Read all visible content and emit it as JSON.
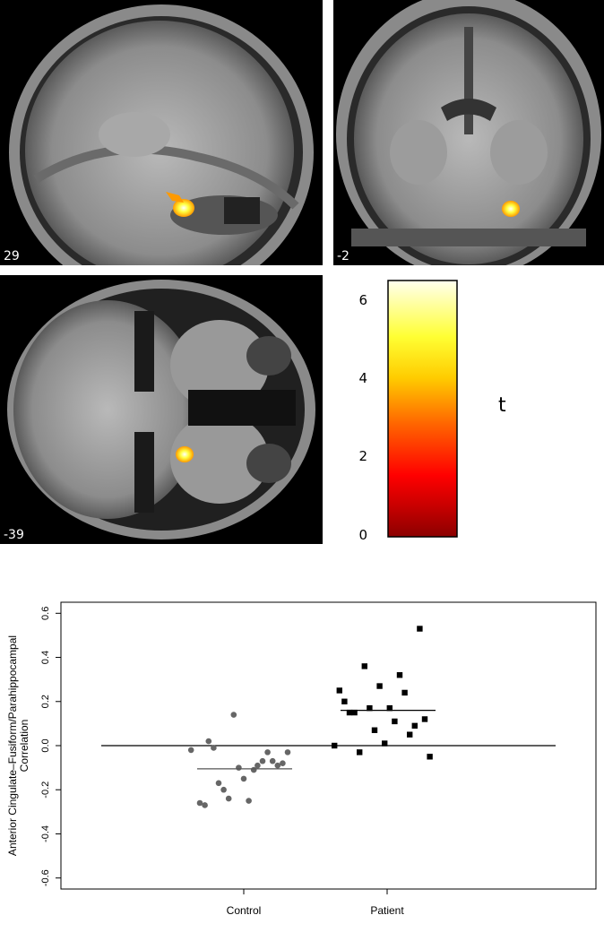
{
  "panels": {
    "sagittal": {
      "slice_label": "29"
    },
    "coronal": {
      "slice_label": "-2"
    },
    "axial": {
      "slice_label": "-39"
    }
  },
  "colorbar": {
    "title": "t",
    "ticks": [
      "0",
      "2",
      "4",
      "6"
    ],
    "range": [
      0,
      6.5
    ],
    "colors": [
      "#8b0000",
      "#ff0000",
      "#ff6a00",
      "#ffcc00",
      "#ffff33",
      "#ffffee"
    ]
  },
  "chart_data": {
    "type": "scatter",
    "categories": [
      "Control",
      "Patient"
    ],
    "ylabel": "Anterior Cingulate–Fusiform/Parahippocampal\nCorrelation",
    "yticks": [
      "-0.6",
      "-0.4",
      "-0.2",
      "0.0",
      "0.2",
      "0.4",
      "0.6"
    ],
    "ylim": [
      -0.65,
      0.65
    ],
    "hline": 0.0,
    "series": [
      {
        "marker": "circle",
        "color": "#666666",
        "mean": -0.105,
        "points": [
          [
            -0.42,
            -0.02
          ],
          [
            -0.35,
            -0.26
          ],
          [
            -0.31,
            -0.27
          ],
          [
            -0.28,
            0.02
          ],
          [
            -0.24,
            -0.01
          ],
          [
            -0.2,
            -0.17
          ],
          [
            -0.16,
            -0.2
          ],
          [
            -0.12,
            -0.24
          ],
          [
            -0.08,
            0.14
          ],
          [
            -0.04,
            -0.1
          ],
          [
            0.0,
            -0.15
          ],
          [
            0.04,
            -0.25
          ],
          [
            0.08,
            -0.11
          ],
          [
            0.11,
            -0.09
          ],
          [
            0.15,
            -0.07
          ],
          [
            0.19,
            -0.03
          ],
          [
            0.23,
            -0.07
          ],
          [
            0.27,
            -0.09
          ],
          [
            0.31,
            -0.08
          ],
          [
            0.35,
            -0.03
          ]
        ]
      },
      {
        "marker": "square",
        "color": "#000000",
        "mean": 0.16,
        "points": [
          [
            -0.42,
            0.0
          ],
          [
            -0.38,
            0.25
          ],
          [
            -0.34,
            0.2
          ],
          [
            -0.3,
            0.15
          ],
          [
            -0.26,
            0.15
          ],
          [
            -0.22,
            -0.03
          ],
          [
            -0.18,
            0.36
          ],
          [
            -0.14,
            0.17
          ],
          [
            -0.1,
            0.07
          ],
          [
            -0.06,
            0.27
          ],
          [
            -0.02,
            0.01
          ],
          [
            0.02,
            0.17
          ],
          [
            0.06,
            0.11
          ],
          [
            0.1,
            0.32
          ],
          [
            0.14,
            0.24
          ],
          [
            0.18,
            0.05
          ],
          [
            0.22,
            0.09
          ],
          [
            0.26,
            0.53
          ],
          [
            0.3,
            0.12
          ],
          [
            0.34,
            -0.05
          ]
        ]
      }
    ]
  }
}
